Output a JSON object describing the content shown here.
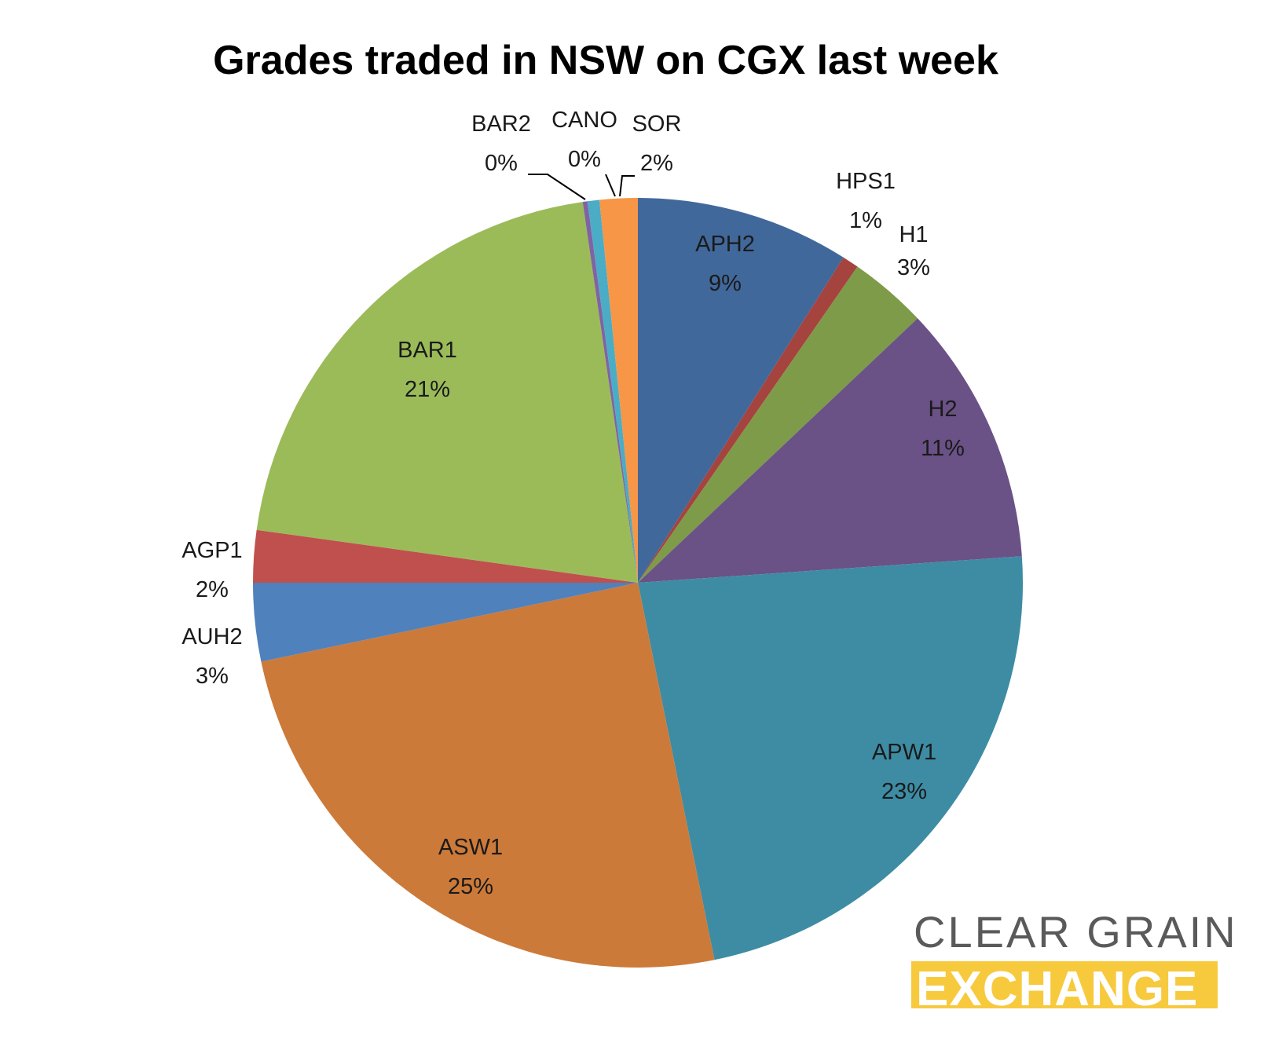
{
  "chart_data": {
    "type": "pie",
    "title": "Grades traded in NSW on CGX last week",
    "slices": [
      {
        "name": "APH2",
        "value": 9,
        "label": "9%",
        "color": "#41689b"
      },
      {
        "name": "HPS1",
        "value": 0.7,
        "label": "1%",
        "color": "#a5433f"
      },
      {
        "name": "H1",
        "value": 3.3,
        "label": "3%",
        "color": "#7d9b48"
      },
      {
        "name": "H2",
        "value": 11,
        "label": "11%",
        "color": "#6a5186"
      },
      {
        "name": "APW1",
        "value": 23,
        "label": "23%",
        "color": "#3d8ca4"
      },
      {
        "name": "ASW1",
        "value": 25,
        "label": "25%",
        "color": "#cc7a39"
      },
      {
        "name": "AUH2",
        "value": 3.3,
        "label": "3%",
        "color": "#4f81bd"
      },
      {
        "name": "AGP1",
        "value": 2.2,
        "label": "2%",
        "color": "#c0504d"
      },
      {
        "name": "BAR1",
        "value": 20.6,
        "label": "21%",
        "color": "#9bbb59"
      },
      {
        "name": "BAR2",
        "value": 0.2,
        "label": "0%",
        "color": "#8064a2"
      },
      {
        "name": "CANO",
        "value": 0.5,
        "label": "0%",
        "color": "#4bacc6"
      },
      {
        "name": "SOR",
        "value": 1.6,
        "label": "2%",
        "color": "#f79646"
      }
    ]
  },
  "logo": {
    "line1": "CLEAR GRAIN",
    "line2": "EXCHANGE",
    "line2_background": "#f7c93d"
  }
}
